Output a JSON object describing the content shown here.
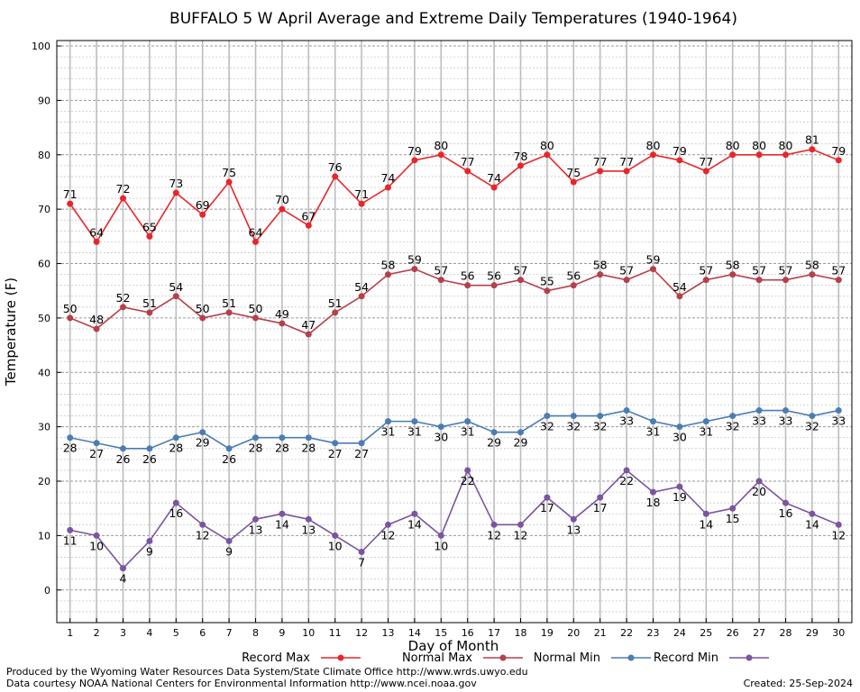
{
  "chart_data": {
    "type": "line",
    "title": "BUFFALO 5 W April Average and Extreme Daily Temperatures (1940-1964)",
    "xlabel": "Day of Month",
    "ylabel": "Temperature (F)",
    "ylim": [
      -6,
      101
    ],
    "yticks": [
      0,
      10,
      20,
      30,
      40,
      50,
      60,
      70,
      80,
      90,
      100
    ],
    "xlim": [
      0.5,
      30.5
    ],
    "categories": [
      1,
      2,
      3,
      4,
      5,
      6,
      7,
      8,
      9,
      10,
      11,
      12,
      13,
      14,
      15,
      16,
      17,
      18,
      19,
      20,
      21,
      22,
      23,
      24,
      25,
      26,
      27,
      28,
      29,
      30
    ],
    "grid": true,
    "legend_position": "bottom",
    "series": [
      {
        "name": "Record Max",
        "color": "#e8262a",
        "label_position": "above",
        "values": [
          71,
          64,
          72,
          65,
          73,
          69,
          75,
          64,
          70,
          67,
          76,
          71,
          74,
          79,
          80,
          77,
          74,
          78,
          80,
          75,
          77,
          77,
          80,
          79,
          77,
          80,
          80,
          80,
          81,
          79
        ]
      },
      {
        "name": "Normal Max",
        "color": "#b5404a",
        "label_position": "above",
        "values": [
          50,
          48,
          52,
          51,
          54,
          50,
          51,
          50,
          49,
          47,
          51,
          54,
          58,
          59,
          57,
          56,
          56,
          57,
          55,
          56,
          58,
          57,
          59,
          54,
          57,
          58,
          57,
          57,
          58,
          57
        ]
      },
      {
        "name": "Normal Min",
        "color": "#4a7db4",
        "label_position": "below",
        "values": [
          28,
          27,
          26,
          26,
          28,
          29,
          26,
          28,
          28,
          28,
          27,
          27,
          31,
          31,
          30,
          31,
          29,
          29,
          32,
          32,
          32,
          33,
          31,
          30,
          31,
          32,
          33,
          33,
          32,
          33
        ]
      },
      {
        "name": "Record Min",
        "color": "#7a55a0",
        "label_position": "below",
        "values": [
          11,
          10,
          4,
          9,
          16,
          12,
          9,
          13,
          14,
          13,
          10,
          7,
          12,
          14,
          10,
          22,
          12,
          12,
          17,
          13,
          17,
          22,
          18,
          19,
          14,
          15,
          20,
          16,
          14,
          12
        ]
      }
    ]
  },
  "footer": {
    "produced_by": "Produced by the Wyoming Water Resources Data System/State Climate Office http://www.wrds.uwyo.edu",
    "courtesy": "Data courtesy NOAA National Centers for Environmental Information http://www.ncei.noaa.gov",
    "created": "Created: 25-Sep-2024"
  }
}
